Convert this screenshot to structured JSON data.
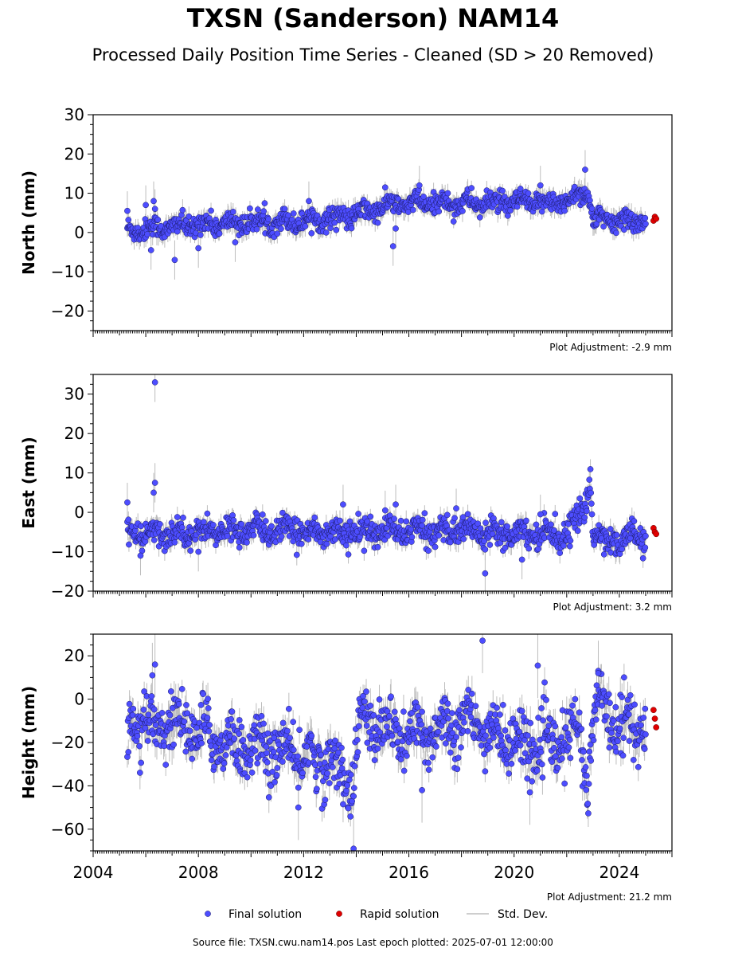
{
  "title": "TXSN (Sanderson) NAM14",
  "subtitle": "Processed Daily Position Time Series - Cleaned (SD > 20 Removed)",
  "footer": "Source file: TXSN.cwu.nam14.pos  Last epoch plotted: 2025-07-01 12:00:00",
  "colors": {
    "final": "#4d4dff",
    "final_edge": "#1a1a66",
    "rapid": "#e00000",
    "stddev": "#bdbdbd"
  },
  "legend": {
    "final": "Final solution",
    "rapid": "Rapid solution",
    "stddev": "Std. Dev."
  },
  "chart_data": [
    {
      "type": "scatter",
      "ylabel": "North (mm)",
      "ylim": [
        -25,
        30
      ],
      "yticks": [
        -20,
        -10,
        0,
        10,
        20,
        30
      ],
      "xlim": [
        2004,
        2026
      ],
      "xticks": [
        "2004",
        "2008",
        "2012",
        "2016",
        "2020",
        "2024"
      ],
      "adjustment": "Plot Adjustment: -2.9 mm",
      "trend": [
        [
          2005.3,
          0.5
        ],
        [
          2008.0,
          2.0
        ],
        [
          2012.0,
          3.0
        ],
        [
          2014.0,
          4.5
        ],
        [
          2015.3,
          7.0
        ],
        [
          2016.5,
          7.5
        ],
        [
          2020.0,
          7.5
        ],
        [
          2022.0,
          7.8
        ],
        [
          2022.8,
          11.0
        ],
        [
          2023.0,
          3.0
        ],
        [
          2025.0,
          3.0
        ]
      ],
      "spread": 1.3,
      "sd": 2.0,
      "outliers": [
        [
          2005.3,
          5.5
        ],
        [
          2006.0,
          7.0
        ],
        [
          2006.2,
          -4.5
        ],
        [
          2006.3,
          8.0
        ],
        [
          2006.35,
          6.0
        ],
        [
          2007.1,
          -7.0
        ],
        [
          2008.0,
          -4.0
        ],
        [
          2009.4,
          -2.5
        ],
        [
          2012.2,
          8.0
        ],
        [
          2015.4,
          -3.5
        ],
        [
          2015.5,
          1.0
        ],
        [
          2016.4,
          12.0
        ],
        [
          2021.0,
          12.0
        ],
        [
          2022.7,
          16.0
        ]
      ],
      "rapid": [
        [
          2025.3,
          3.0
        ],
        [
          2025.35,
          4.0
        ],
        [
          2025.4,
          3.5
        ]
      ]
    },
    {
      "type": "scatter",
      "ylabel": "East (mm)",
      "ylim": [
        -20,
        35
      ],
      "yticks": [
        -20,
        -10,
        0,
        10,
        20,
        30
      ],
      "xlim": [
        2004,
        2026
      ],
      "xticks": [
        "2004",
        "2008",
        "2012",
        "2016",
        "2020",
        "2024"
      ],
      "adjustment": "Plot Adjustment: 3.2 mm",
      "trend": [
        [
          2005.3,
          -4.5
        ],
        [
          2006.0,
          -6.0
        ],
        [
          2007.5,
          -5.0
        ],
        [
          2010.0,
          -4.5
        ],
        [
          2014.0,
          -5.0
        ],
        [
          2018.0,
          -4.5
        ],
        [
          2022.0,
          -5.5
        ],
        [
          2022.4,
          -2.0
        ],
        [
          2022.7,
          2.0
        ],
        [
          2022.9,
          9.0
        ],
        [
          2023.0,
          -7.0
        ],
        [
          2023.8,
          -6.0
        ],
        [
          2024.0,
          -10.0
        ],
        [
          2024.5,
          -4.0
        ],
        [
          2025.0,
          -8.0
        ]
      ],
      "spread": 1.6,
      "sd": 2.0,
      "outliers": [
        [
          2006.35,
          33.0
        ],
        [
          2006.35,
          7.5
        ],
        [
          2006.3,
          5.0
        ],
        [
          2005.3,
          2.5
        ],
        [
          2005.8,
          -11.0
        ],
        [
          2008.0,
          -10.0
        ],
        [
          2013.5,
          2.0
        ],
        [
          2015.5,
          2.0
        ],
        [
          2017.8,
          1.0
        ],
        [
          2018.9,
          -15.5
        ],
        [
          2020.3,
          -12.0
        ],
        [
          2021.0,
          -0.5
        ],
        [
          2015.1,
          0.5
        ]
      ],
      "rapid": [
        [
          2025.3,
          -4.0
        ],
        [
          2025.35,
          -5.0
        ],
        [
          2025.4,
          -5.5
        ]
      ]
    },
    {
      "type": "scatter",
      "ylabel": "Height (mm)",
      "ylim": [
        -70,
        30
      ],
      "yticks": [
        -60,
        -40,
        -20,
        0,
        20
      ],
      "xlim": [
        2004,
        2026
      ],
      "xticks": [
        "2004",
        "2008",
        "2012",
        "2016",
        "2020",
        "2024"
      ],
      "adjustment": "Plot Adjustment: 21.2 mm",
      "trend": [
        [
          2005.3,
          -15.0
        ],
        [
          2007.0,
          -10.0
        ],
        [
          2009.0,
          -20.0
        ],
        [
          2011.5,
          -25.0
        ],
        [
          2013.0,
          -30.0
        ],
        [
          2013.9,
          -38.0
        ],
        [
          2014.1,
          -10.0
        ],
        [
          2016.0,
          -18.0
        ],
        [
          2018.0,
          -10.0
        ],
        [
          2020.0,
          -20.0
        ],
        [
          2021.5,
          -22.0
        ],
        [
          2022.5,
          -15.0
        ],
        [
          2022.8,
          -40.0
        ],
        [
          2023.1,
          0.0
        ],
        [
          2024.0,
          -10.0
        ],
        [
          2025.0,
          -15.0
        ]
      ],
      "spread": 6.5,
      "sd": 6.0,
      "outliers": [
        [
          2006.35,
          16.0
        ],
        [
          2006.25,
          11.0
        ],
        [
          2013.9,
          -69.0
        ],
        [
          2018.8,
          27.0
        ],
        [
          2020.9,
          15.5
        ],
        [
          2023.2,
          12.0
        ],
        [
          2011.8,
          -50.0
        ],
        [
          2016.5,
          -42.0
        ],
        [
          2020.6,
          -43.0
        ]
      ],
      "rapid": [
        [
          2025.3,
          -5.0
        ],
        [
          2025.35,
          -9.0
        ],
        [
          2025.4,
          -13.0
        ]
      ]
    }
  ]
}
